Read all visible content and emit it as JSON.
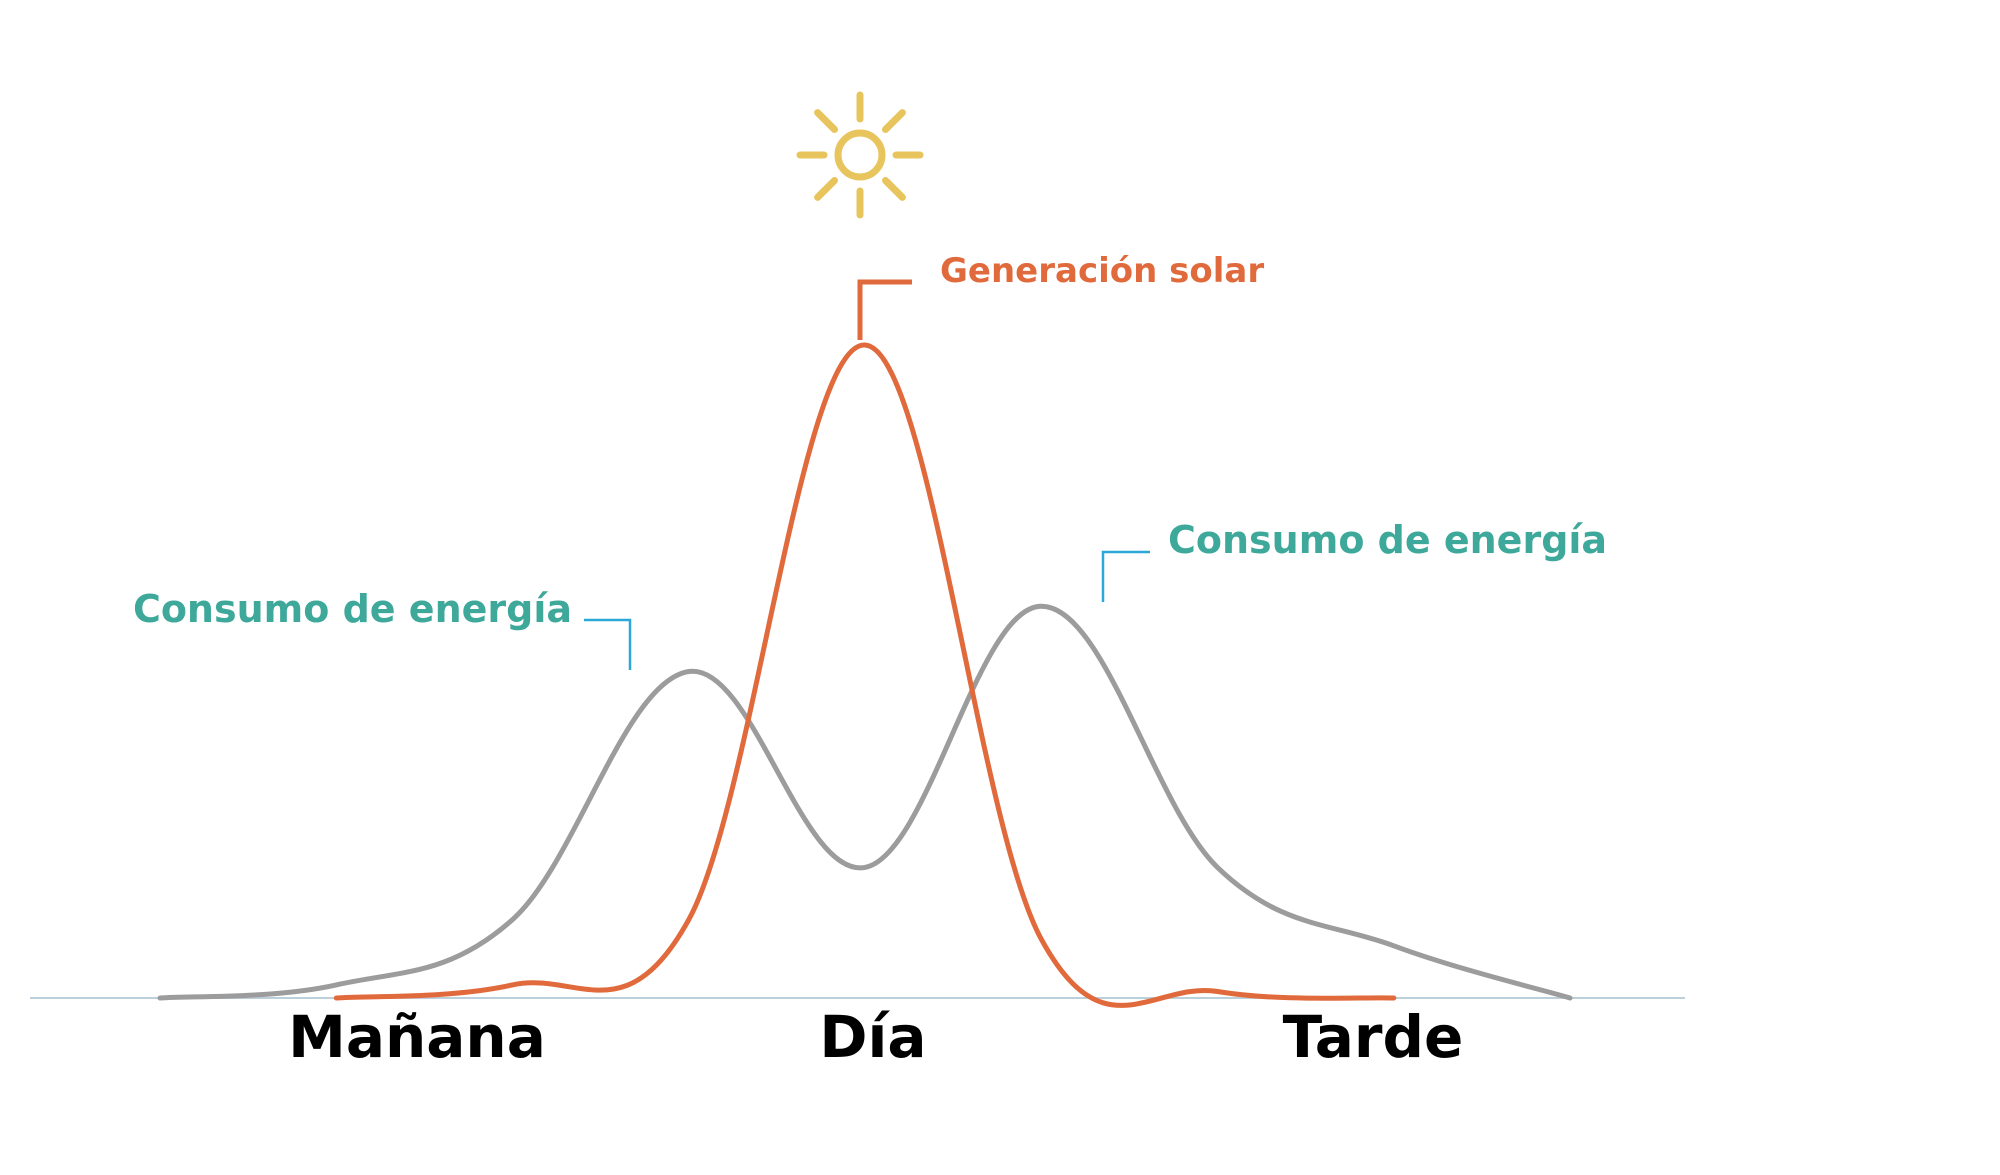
{
  "chart_data": {
    "type": "line",
    "title": "",
    "xlabel": "",
    "ylabel": "",
    "categories": [
      "Mañana",
      "Día",
      "Tarde"
    ],
    "x": [
      0,
      0.5,
      1,
      1.5,
      2,
      2.5,
      3,
      3.5,
      4
    ],
    "xlim": [
      0,
      4
    ],
    "ylim": [
      0,
      1
    ],
    "grid": false,
    "series": [
      {
        "key": "solar",
        "color": "#e06a3c",
        "values": [
          0,
          0,
          0.02,
          0.12,
          1.0,
          0.09,
          0.01,
          0,
          0
        ]
      },
      {
        "key": "consumption",
        "color": "#9c9c9c",
        "values": [
          0,
          0.02,
          0.12,
          0.5,
          0.2,
          0.6,
          0.2,
          0.08,
          0
        ]
      }
    ],
    "annotations": [
      {
        "key": "solar",
        "text": "Generación solar",
        "color": "#e06a3c"
      },
      {
        "key": "consumption-morning",
        "text": "Consumo de energía",
        "color": "#3ea89a"
      },
      {
        "key": "consumption-evening",
        "text": "Consumo de energía",
        "color": "#3ea89a"
      }
    ],
    "icon": "sun-icon",
    "icon_color": "#e8c45c",
    "leader_color": "#2aa8d8",
    "baseline_color": "#bcd0dc"
  }
}
